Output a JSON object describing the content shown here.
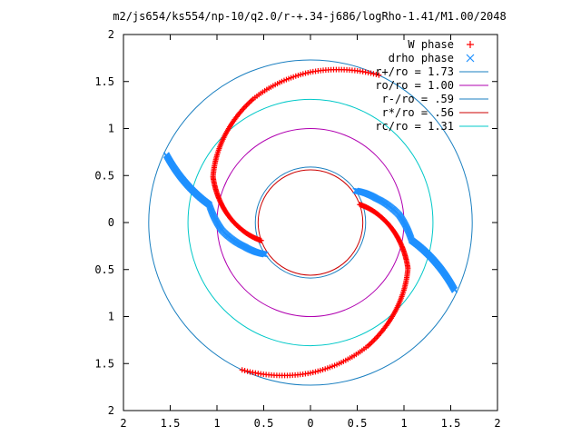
{
  "chart_data": {
    "type": "scatter",
    "title": "m2/js654/ks554/np-10/q2.0/r-+.34-j686/logRho-1.41/M1.00/2048",
    "xlim": [
      2,
      -2
    ],
    "ylim": [
      -2,
      2
    ],
    "x_ticks": [
      {
        "value": 2,
        "label": "2"
      },
      {
        "value": 1.5,
        "label": "1.5"
      },
      {
        "value": 1,
        "label": "1"
      },
      {
        "value": 0.5,
        "label": "0.5"
      },
      {
        "value": 0,
        "label": "0"
      },
      {
        "value": -0.5,
        "label": "0.5"
      },
      {
        "value": -1,
        "label": "1"
      },
      {
        "value": -1.5,
        "label": "1.5"
      },
      {
        "value": -2,
        "label": "2"
      }
    ],
    "y_ticks": [
      {
        "value": 2,
        "label": "2"
      },
      {
        "value": 1.5,
        "label": "1.5"
      },
      {
        "value": 1,
        "label": "1"
      },
      {
        "value": 0.5,
        "label": "0.5"
      },
      {
        "value": 0,
        "label": "0"
      },
      {
        "value": -0.5,
        "label": "0.5"
      },
      {
        "value": -1,
        "label": "1"
      },
      {
        "value": -1.5,
        "label": "1.5"
      },
      {
        "value": -2,
        "label": "2"
      }
    ],
    "legend_position": "top-right",
    "series": [
      {
        "name": "W phase",
        "marker": "+",
        "color": "#ff0000",
        "arms": [
          {
            "r": [
              0.56,
              0.75,
              0.95,
              1.15,
              1.3,
              1.45,
              1.6,
              1.73
            ],
            "theta": [
              -20,
              -5,
              10,
              25,
              45,
              65,
              90,
              115
            ]
          },
          {
            "r": [
              0.56,
              0.75,
              0.95,
              1.15,
              1.3,
              1.45,
              1.6,
              1.73
            ],
            "theta": [
              160,
              175,
              190,
              205,
              225,
              245,
              270,
              295
            ]
          }
        ]
      },
      {
        "name": "drho phase",
        "marker": "x",
        "color": "#1e90ff",
        "arms": [
          {
            "r": [
              0.59,
              0.75,
              0.95,
              1.1,
              1.3,
              1.5,
              1.7
            ],
            "theta": [
              -35,
              -20,
              -5,
              10,
              15,
              20,
              25
            ]
          },
          {
            "r": [
              0.59,
              0.75,
              0.95,
              1.1,
              1.3,
              1.5,
              1.7
            ],
            "theta": [
              145,
              160,
              175,
              190,
              195,
              200,
              205
            ]
          }
        ]
      },
      {
        "name": "r+/ro = 1.73",
        "type": "circle",
        "radius": 1.73,
        "color": "#1a7fc0"
      },
      {
        "name": "ro/ro = 1.00",
        "type": "circle",
        "radius": 1.0,
        "color": "#b000b0"
      },
      {
        "name": "r-/ro = .59",
        "type": "circle",
        "radius": 0.59,
        "color": "#1a7fc0"
      },
      {
        "name": "r*/ro = .56",
        "type": "circle",
        "radius": 0.56,
        "color": "#cc0000"
      },
      {
        "name": "rc/ro = 1.31",
        "type": "circle",
        "radius": 1.31,
        "color": "#00c8c8"
      }
    ]
  }
}
